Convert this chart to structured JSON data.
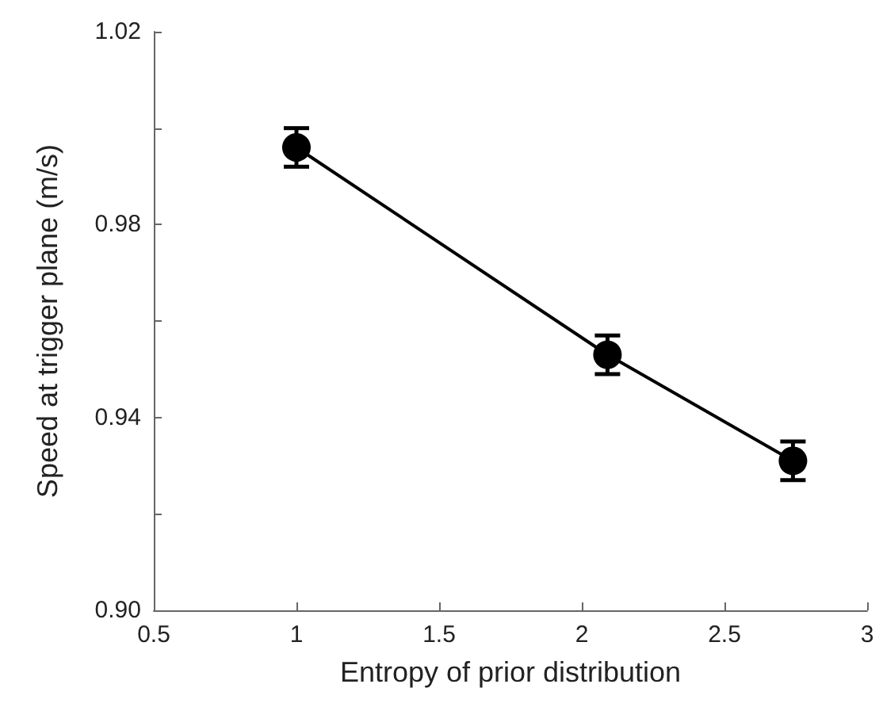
{
  "chart_data": {
    "type": "line",
    "xlabel": "Entropy of prior distribution",
    "ylabel": "Speed at trigger plane (m/s)",
    "x": [
      1,
      2.09,
      2.74
    ],
    "series": [
      {
        "color": "#000000",
        "values": [
          0.996,
          0.953,
          0.931
        ],
        "errors": [
          0.004,
          0.004,
          0.004
        ]
      }
    ],
    "xlim": [
      0.5,
      3
    ],
    "xticks": [
      0.5,
      1,
      1.5,
      2,
      2.5,
      3
    ],
    "ylim": [
      0.9,
      1.02
    ],
    "yticks": [
      {
        "value": 0.9,
        "label": "0.90"
      },
      {
        "value": 0.92,
        "label": null
      },
      {
        "value": 0.94,
        "label": "0.94"
      },
      {
        "value": 0.96,
        "label": null
      },
      {
        "value": 0.98,
        "label": "0.98"
      },
      {
        "value": 1.0,
        "label": null
      },
      {
        "value": 1.02,
        "label": "1.02"
      }
    ],
    "marker": "circle",
    "line_style": "solid",
    "grid": false
  }
}
